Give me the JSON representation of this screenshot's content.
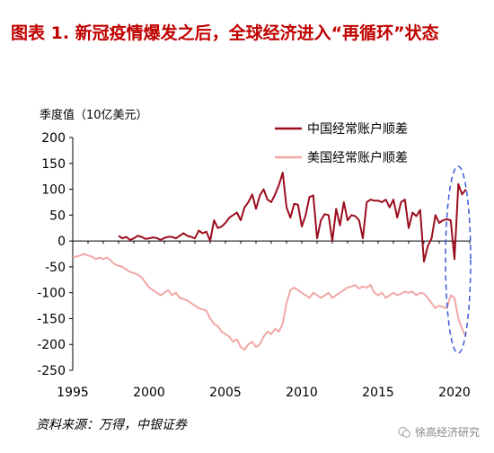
{
  "title": "图表 1.  新冠疫情爆发之后，全球经济进入“再循环”状态",
  "source": "资料来源：万得，中银证券",
  "watermark": "徐高经济研究",
  "chart_data": {
    "type": "line",
    "ylabel": "季度值（10亿美元）",
    "ylim": [
      -250,
      200
    ],
    "xlim": [
      1995,
      2021
    ],
    "yticks": [
      200,
      150,
      100,
      50,
      0,
      -50,
      -100,
      -150,
      -200,
      -250
    ],
    "xticks": [
      1995,
      2000,
      2005,
      2010,
      2015,
      2020
    ],
    "grid": false,
    "legend": "top-right",
    "series": [
      {
        "name": "中国经常账户顺差",
        "color": "#9b0d1e",
        "x": [
          1998.0,
          1998.25,
          1998.5,
          1998.75,
          1999.0,
          1999.25,
          1999.5,
          1999.75,
          2000.0,
          2000.25,
          2000.5,
          2000.75,
          2001.0,
          2001.25,
          2001.5,
          2001.75,
          2002.0,
          2002.25,
          2002.5,
          2002.75,
          2003.0,
          2003.25,
          2003.5,
          2003.75,
          2004.0,
          2004.25,
          2004.5,
          2004.75,
          2005.0,
          2005.25,
          2005.5,
          2005.75,
          2006.0,
          2006.25,
          2006.5,
          2006.75,
          2007.0,
          2007.25,
          2007.5,
          2007.75,
          2008.0,
          2008.25,
          2008.5,
          2008.75,
          2009.0,
          2009.25,
          2009.5,
          2009.75,
          2010.0,
          2010.25,
          2010.5,
          2010.75,
          2011.0,
          2011.25,
          2011.5,
          2011.75,
          2012.0,
          2012.25,
          2012.5,
          2012.75,
          2013.0,
          2013.25,
          2013.5,
          2013.75,
          2014.0,
          2014.25,
          2014.5,
          2014.75,
          2015.0,
          2015.25,
          2015.5,
          2015.75,
          2016.0,
          2016.25,
          2016.5,
          2016.75,
          2017.0,
          2017.25,
          2017.5,
          2017.75,
          2018.0,
          2018.25,
          2018.5,
          2018.75,
          2019.0,
          2019.25,
          2019.5,
          2019.75,
          2020.0,
          2020.25,
          2020.5,
          2020.75
        ],
        "values": [
          10,
          5,
          8,
          2,
          5,
          10,
          8,
          4,
          5,
          7,
          6,
          2,
          6,
          8,
          8,
          5,
          10,
          15,
          10,
          8,
          5,
          20,
          15,
          18,
          0,
          40,
          25,
          28,
          35,
          45,
          50,
          55,
          40,
          65,
          75,
          90,
          62,
          88,
          100,
          80,
          75,
          90,
          108,
          132,
          65,
          45,
          72,
          70,
          28,
          50,
          85,
          88,
          5,
          40,
          52,
          50,
          0,
          62,
          30,
          75,
          40,
          50,
          48,
          40,
          5,
          75,
          80,
          78,
          78,
          75,
          80,
          65,
          80,
          45,
          75,
          80,
          25,
          55,
          48,
          60,
          -40,
          -10,
          5,
          50,
          35,
          40,
          42,
          40,
          -35,
          110,
          90,
          100
        ]
      },
      {
        "name": "美国经常账户顺差",
        "color": "#f0a8a6",
        "x": [
          1995.0,
          1995.25,
          1995.5,
          1995.75,
          1996.0,
          1996.25,
          1996.5,
          1996.75,
          1997.0,
          1997.25,
          1997.5,
          1997.75,
          1998.0,
          1998.25,
          1998.5,
          1998.75,
          1999.0,
          1999.25,
          1999.5,
          1999.75,
          2000.0,
          2000.25,
          2000.5,
          2000.75,
          2001.0,
          2001.25,
          2001.5,
          2001.75,
          2002.0,
          2002.25,
          2002.5,
          2002.75,
          2003.0,
          2003.25,
          2003.5,
          2003.75,
          2004.0,
          2004.25,
          2004.5,
          2004.75,
          2005.0,
          2005.25,
          2005.5,
          2005.75,
          2006.0,
          2006.25,
          2006.5,
          2006.75,
          2007.0,
          2007.25,
          2007.5,
          2007.75,
          2008.0,
          2008.25,
          2008.5,
          2008.75,
          2009.0,
          2009.25,
          2009.5,
          2009.75,
          2010.0,
          2010.25,
          2010.5,
          2010.75,
          2011.0,
          2011.25,
          2011.5,
          2011.75,
          2012.0,
          2012.25,
          2012.5,
          2012.75,
          2013.0,
          2013.25,
          2013.5,
          2013.75,
          2014.0,
          2014.25,
          2014.5,
          2014.75,
          2015.0,
          2015.25,
          2015.5,
          2015.75,
          2016.0,
          2016.25,
          2016.5,
          2016.75,
          2017.0,
          2017.25,
          2017.5,
          2017.75,
          2018.0,
          2018.25,
          2018.5,
          2018.75,
          2019.0,
          2019.25,
          2019.5,
          2019.75,
          2020.0,
          2020.25,
          2020.5,
          2020.75
        ],
        "values": [
          -32,
          -30,
          -28,
          -25,
          -28,
          -30,
          -35,
          -32,
          -35,
          -32,
          -38,
          -45,
          -48,
          -50,
          -55,
          -60,
          -62,
          -65,
          -70,
          -80,
          -90,
          -95,
          -100,
          -105,
          -100,
          -95,
          -105,
          -100,
          -110,
          -112,
          -115,
          -120,
          -125,
          -130,
          -132,
          -135,
          -150,
          -160,
          -165,
          -175,
          -180,
          -185,
          -195,
          -190,
          -205,
          -210,
          -200,
          -195,
          -205,
          -200,
          -185,
          -175,
          -180,
          -170,
          -175,
          -160,
          -120,
          -95,
          -90,
          -95,
          -100,
          -105,
          -110,
          -100,
          -105,
          -110,
          -105,
          -100,
          -110,
          -105,
          -100,
          -95,
          -90,
          -88,
          -85,
          -92,
          -88,
          -90,
          -85,
          -100,
          -105,
          -100,
          -110,
          -105,
          -100,
          -105,
          -102,
          -98,
          -100,
          -98,
          -105,
          -100,
          -102,
          -110,
          -120,
          -130,
          -125,
          -128,
          -130,
          -105,
          -110,
          -150,
          -170,
          -185
        ]
      }
    ]
  }
}
